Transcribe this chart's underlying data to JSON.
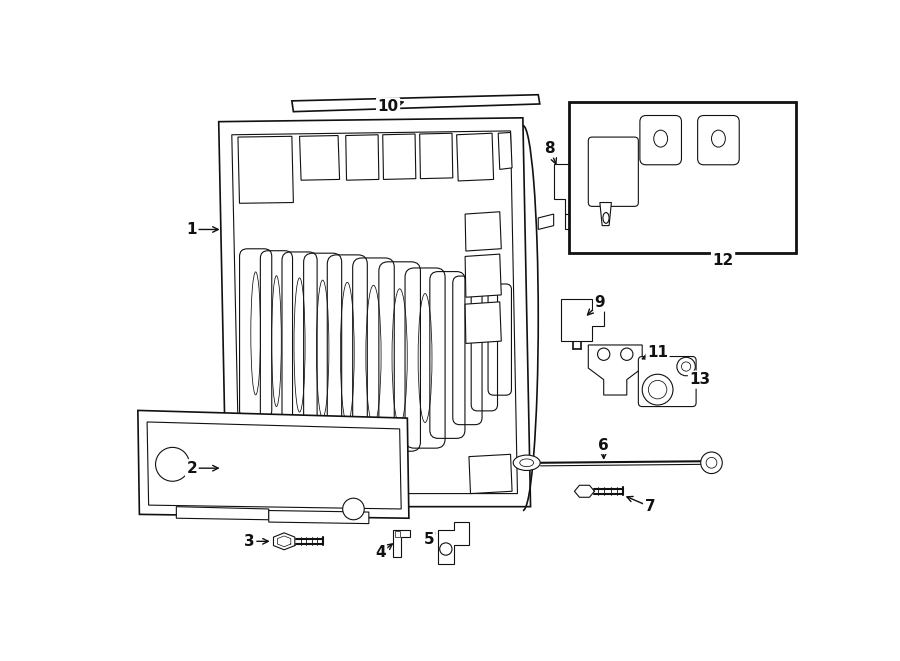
{
  "bg_color": "#ffffff",
  "line_color": "#111111",
  "fig_width": 9.0,
  "fig_height": 6.61,
  "dpi": 100
}
